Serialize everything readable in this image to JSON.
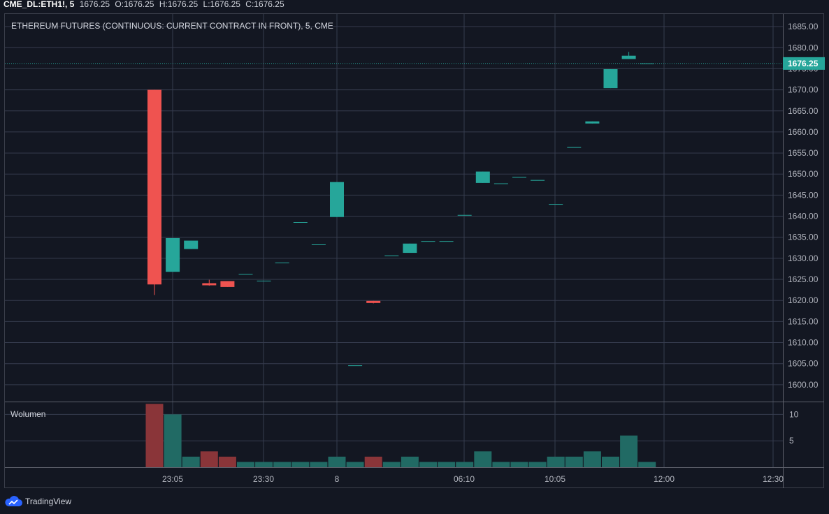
{
  "header": {
    "symbol": "CME_DL:ETH1!, 5",
    "open": "O:1676.25",
    "high": "H:1676.25",
    "low": "L:1676.25",
    "close": "C:1676.25",
    "last": "1676.25"
  },
  "footer": {
    "brand": "TradingView"
  },
  "colors": {
    "up": "#26a69a",
    "down": "#ef5350",
    "background": "#131722",
    "grid": "#363c4e"
  },
  "chart_data": {
    "type": "candlestick",
    "title": "ETHEREUM FUTURES (CONTINUOUS: CURRENT CONTRACT IN FRONT), 5, CME",
    "ylim": [
      1596,
      1688
    ],
    "y_ticks": [
      "1685.00",
      "1680.00",
      "1675.00",
      "1670.00",
      "1665.00",
      "1660.00",
      "1655.00",
      "1650.00",
      "1645.00",
      "1640.00",
      "1635.00",
      "1630.00",
      "1625.00",
      "1620.00",
      "1615.00",
      "1610.00",
      "1605.00",
      "1600.00"
    ],
    "x_ticks": [
      "23:05",
      "23:30",
      "8",
      "06:10",
      "10:05",
      "12:00",
      "12:30"
    ],
    "last_price": 1676.25,
    "last_price_label": "1676.25",
    "candles": [
      {
        "o": 1670.0,
        "h": 1670.0,
        "l": 1621.3,
        "c": 1623.8
      },
      {
        "o": 1626.8,
        "h": 1634.8,
        "l": 1626.8,
        "c": 1634.8
      },
      {
        "o": 1632.2,
        "h": 1634.2,
        "l": 1632.2,
        "c": 1634.2
      },
      {
        "o": 1624.1,
        "h": 1624.9,
        "l": 1623.5,
        "c": 1623.6
      },
      {
        "o": 1624.6,
        "h": 1624.6,
        "l": 1623.2,
        "c": 1623.2
      },
      {
        "o": 1626.2,
        "h": 1626.2,
        "l": 1626.2,
        "c": 1626.3
      },
      {
        "o": 1624.6,
        "h": 1624.6,
        "l": 1624.6,
        "c": 1624.7
      },
      {
        "o": 1628.9,
        "h": 1628.9,
        "l": 1628.9,
        "c": 1629.0
      },
      {
        "o": 1638.5,
        "h": 1638.5,
        "l": 1638.5,
        "c": 1638.6
      },
      {
        "o": 1633.2,
        "h": 1633.2,
        "l": 1633.2,
        "c": 1633.3
      },
      {
        "o": 1639.8,
        "h": 1648.1,
        "l": 1639.8,
        "c": 1648.1
      },
      {
        "o": 1604.5,
        "h": 1604.5,
        "l": 1604.5,
        "c": 1604.6
      },
      {
        "o": 1619.9,
        "h": 1619.9,
        "l": 1619.3,
        "c": 1619.4
      },
      {
        "o": 1630.6,
        "h": 1630.6,
        "l": 1630.6,
        "c": 1630.7
      },
      {
        "o": 1631.3,
        "h": 1633.5,
        "l": 1631.3,
        "c": 1633.5
      },
      {
        "o": 1634.0,
        "h": 1634.0,
        "l": 1634.0,
        "c": 1634.1
      },
      {
        "o": 1634.0,
        "h": 1634.0,
        "l": 1634.0,
        "c": 1634.1
      },
      {
        "o": 1640.2,
        "h": 1640.2,
        "l": 1640.2,
        "c": 1640.3
      },
      {
        "o": 1647.9,
        "h": 1650.6,
        "l": 1647.9,
        "c": 1650.6
      },
      {
        "o": 1647.7,
        "h": 1647.7,
        "l": 1647.7,
        "c": 1647.8
      },
      {
        "o": 1649.2,
        "h": 1649.2,
        "l": 1649.2,
        "c": 1649.3
      },
      {
        "o": 1648.5,
        "h": 1648.5,
        "l": 1648.5,
        "c": 1648.6
      },
      {
        "o": 1642.8,
        "h": 1642.8,
        "l": 1642.8,
        "c": 1642.9
      },
      {
        "o": 1656.3,
        "h": 1656.3,
        "l": 1656.3,
        "c": 1656.4
      },
      {
        "o": 1662.0,
        "h": 1662.5,
        "l": 1662.0,
        "c": 1662.5
      },
      {
        "o": 1670.4,
        "h": 1674.9,
        "l": 1670.4,
        "c": 1674.9
      },
      {
        "o": 1677.3,
        "h": 1679.0,
        "l": 1677.3,
        "c": 1678.1
      },
      {
        "o": 1676.2,
        "h": 1676.25,
        "l": 1676.2,
        "c": 1676.25
      }
    ],
    "volume": {
      "title": "Wolumen",
      "ylim": [
        0,
        12.3
      ],
      "y_ticks": [
        "10",
        "5"
      ],
      "values": [
        12,
        10,
        2,
        3,
        2,
        1,
        1,
        1,
        1,
        1,
        2,
        1,
        2,
        1,
        2,
        1,
        1,
        1,
        3,
        1,
        1,
        1,
        2,
        2,
        3,
        2,
        6,
        1
      ]
    }
  }
}
